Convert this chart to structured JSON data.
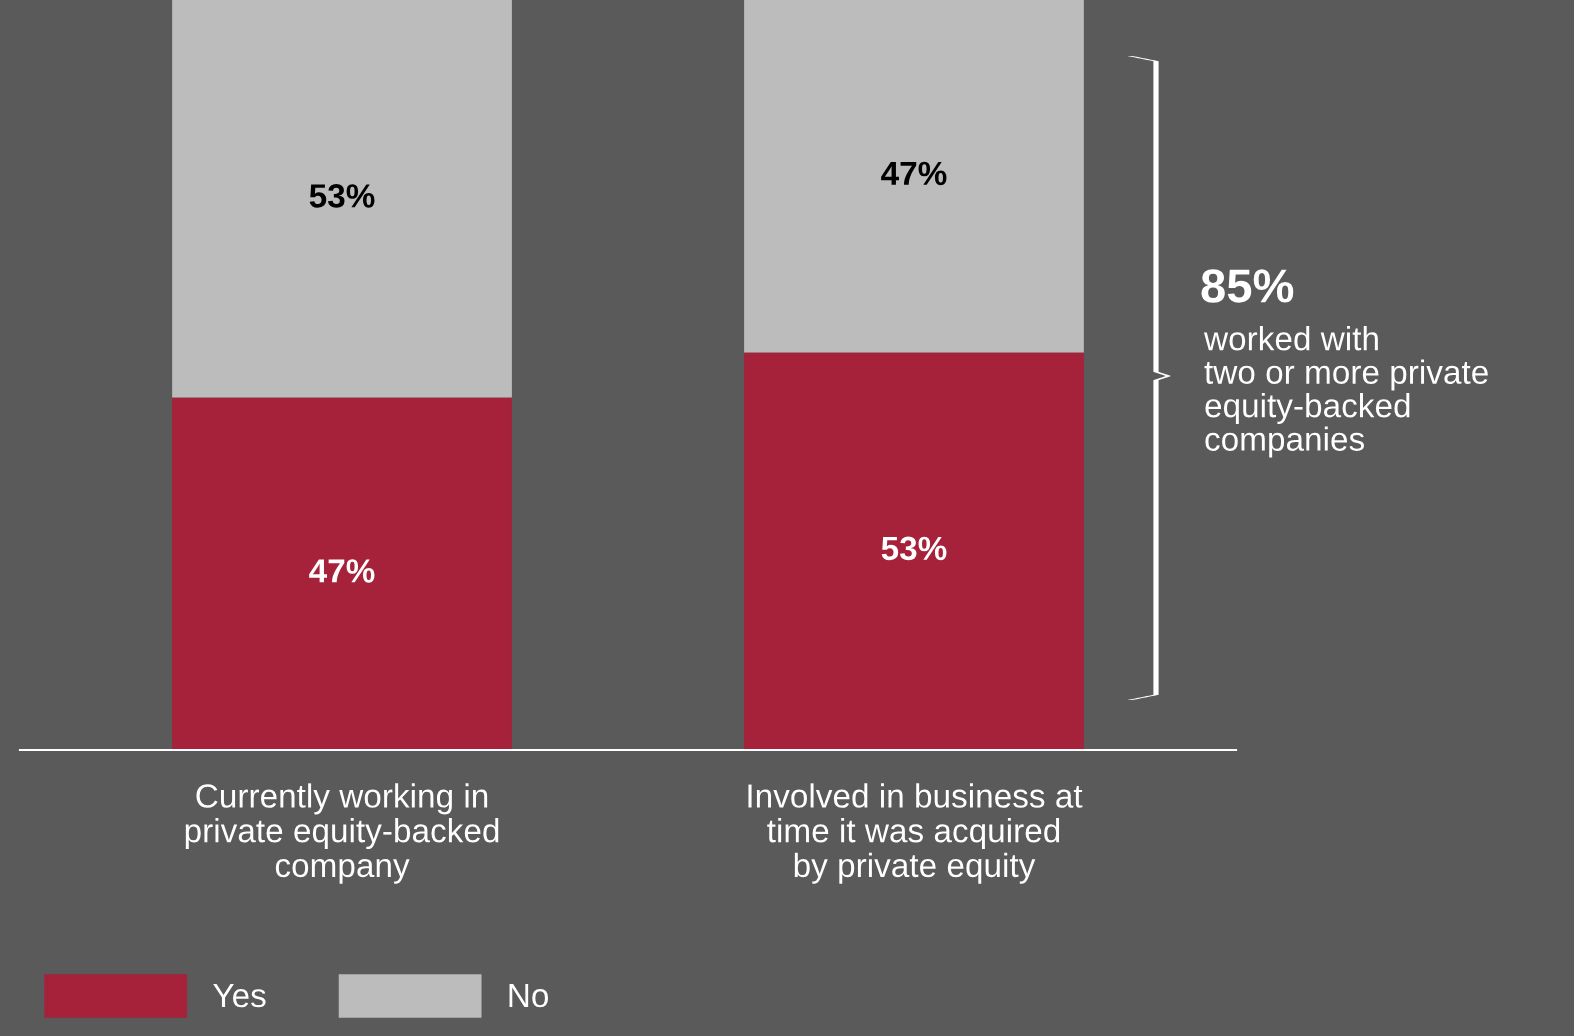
{
  "chart_data": {
    "type": "bar",
    "stacked": true,
    "categories": [
      "Currently working in\nprivate equity-backed\ncompany",
      "Involved in business at\ntime it was acquired\nby private equity"
    ],
    "series": [
      {
        "name": "Yes",
        "color": "#a6213a",
        "values": [
          47,
          53
        ],
        "value_labels": [
          "47%",
          "53%"
        ]
      },
      {
        "name": "No",
        "color": "#bcbcbc",
        "values": [
          53,
          47
        ],
        "value_labels": [
          "53%",
          "47%"
        ]
      }
    ],
    "annotations": [
      "85%",
      "worked with\ntwo or more private\nequity-backed\ncompanies"
    ],
    "legend": "bottom left",
    "grid": false
  }
}
